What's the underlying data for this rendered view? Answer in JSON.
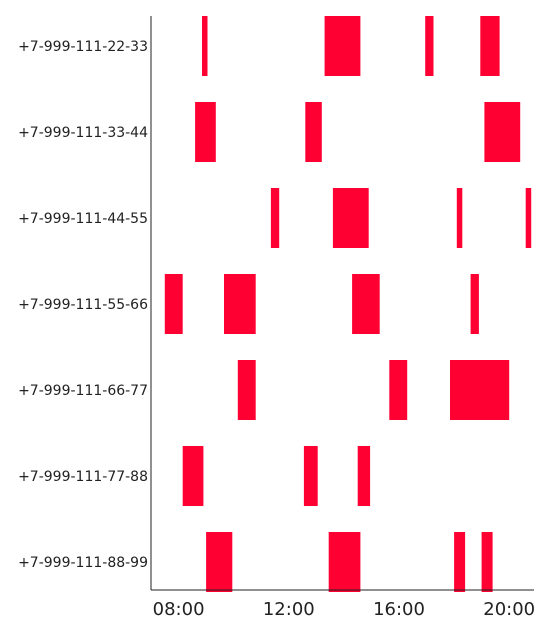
{
  "chart_data": {
    "type": "timeline",
    "title": "",
    "xlabel": "",
    "ylabel": "",
    "x_unit": "hour of day",
    "xlim": [
      7.0,
      20.9
    ],
    "x_ticks": [
      {
        "value": 8,
        "label": "08:00"
      },
      {
        "value": 12,
        "label": "12:00"
      },
      {
        "value": 16,
        "label": "16:00"
      },
      {
        "value": 20,
        "label": "20:00"
      }
    ],
    "bar_color": "#ff0033",
    "axis_color": "#222222",
    "grid": false,
    "legend": "none",
    "rows": [
      {
        "label": "+7-999-111-22-33",
        "intervals": [
          [
            8.85,
            9.05
          ],
          [
            13.3,
            14.6
          ],
          [
            16.95,
            17.25
          ],
          [
            18.95,
            19.65
          ]
        ]
      },
      {
        "label": "+7-999-111-33-44",
        "intervals": [
          [
            8.6,
            9.35
          ],
          [
            12.6,
            13.2
          ],
          [
            19.1,
            20.4
          ]
        ]
      },
      {
        "label": "+7-999-111-44-55",
        "intervals": [
          [
            11.35,
            11.65
          ],
          [
            13.6,
            14.9
          ],
          [
            18.1,
            18.3
          ],
          [
            20.6,
            20.8
          ]
        ]
      },
      {
        "label": "+7-999-111-55-66",
        "intervals": [
          [
            7.5,
            8.15
          ],
          [
            9.65,
            10.8
          ],
          [
            14.3,
            15.3
          ],
          [
            18.6,
            18.9
          ]
        ]
      },
      {
        "label": "+7-999-111-66-77",
        "intervals": [
          [
            10.15,
            10.8
          ],
          [
            15.65,
            16.3
          ],
          [
            17.85,
            20.0
          ]
        ]
      },
      {
        "label": "+7-999-111-77-88",
        "intervals": [
          [
            8.15,
            8.9
          ],
          [
            12.55,
            13.05
          ],
          [
            14.5,
            14.95
          ]
        ]
      },
      {
        "label": "+7-999-111-88-99",
        "intervals": [
          [
            9.0,
            9.95
          ],
          [
            13.45,
            14.6
          ],
          [
            18.0,
            18.4
          ],
          [
            19.0,
            19.4
          ]
        ]
      }
    ]
  }
}
